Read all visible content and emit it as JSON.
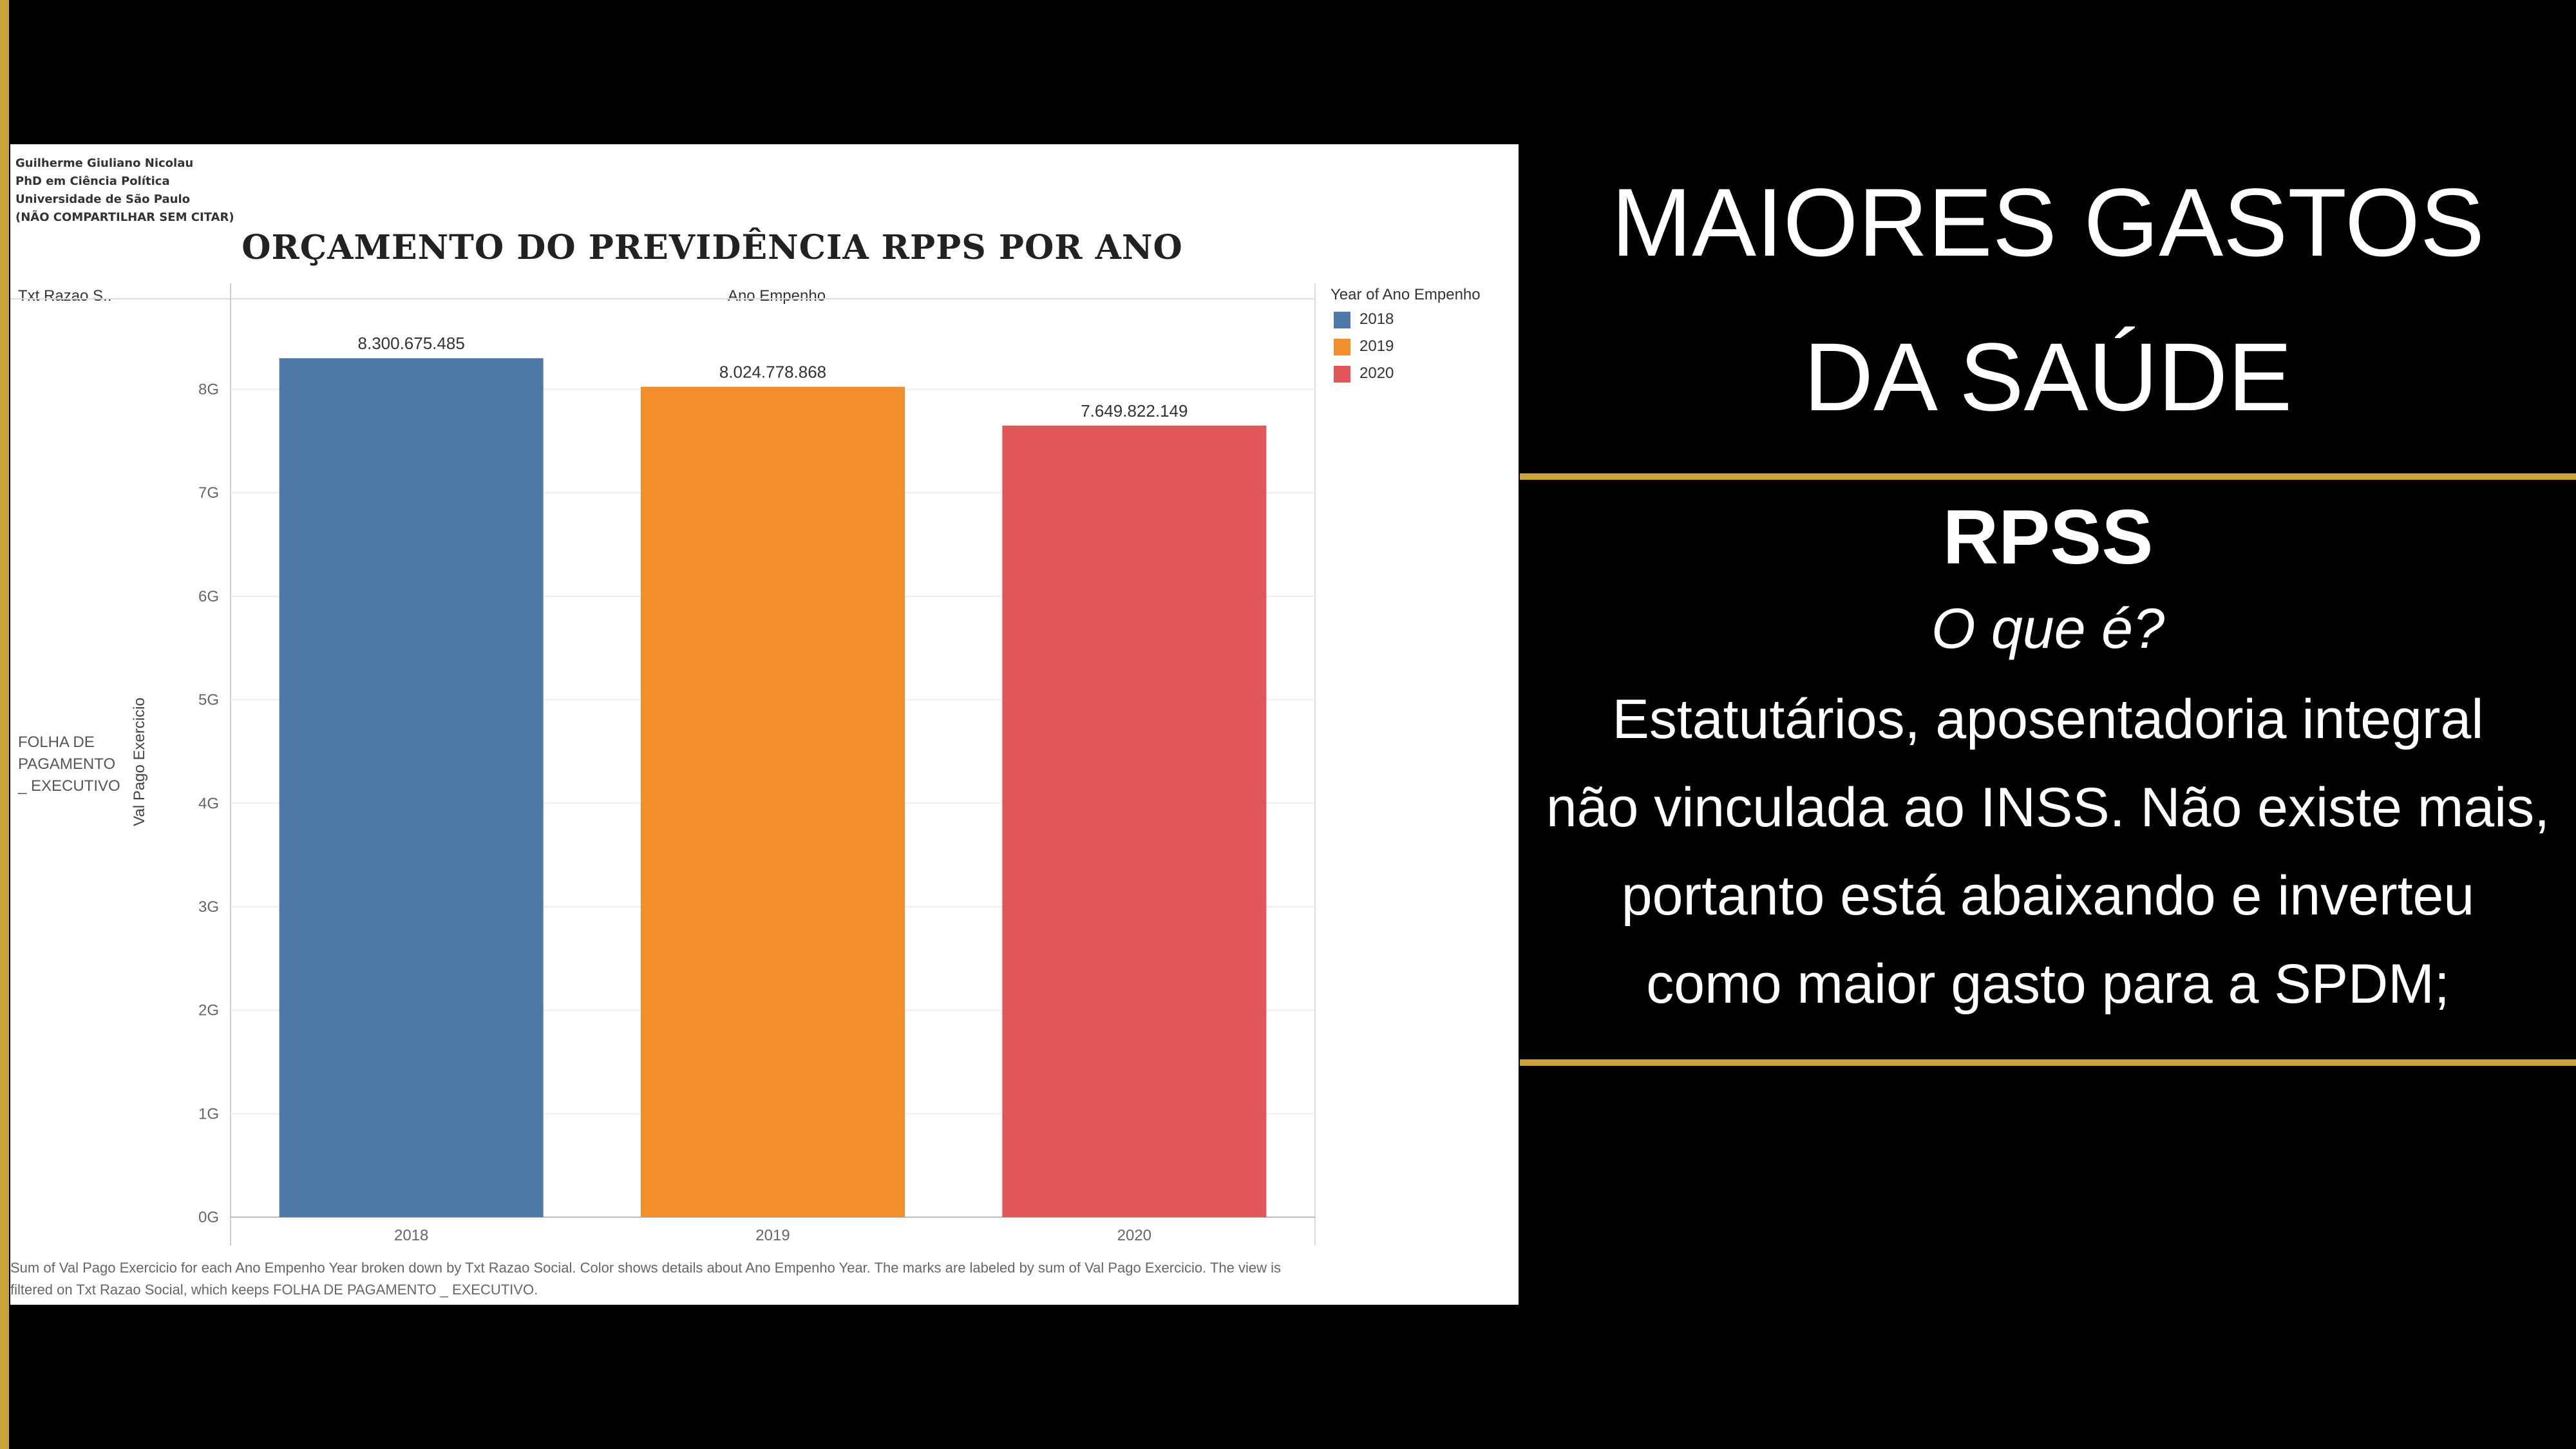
{
  "author_block": [
    "Guilherme Giuliano Nicolau",
    "PhD em Ciência Política",
    "Universidade de São Paulo",
    "(NÃO COMPARTILHAR SEM CITAR)"
  ],
  "column_header": "Txt Razao S..",
  "column_dim": "Ano Empenho",
  "row_label": "FOLHA DE PAGAMENTO _ EXECUTIVO",
  "footnote": "Sum of Val Pago Exercicio for each Ano Empenho Year broken down by Txt Razao Social.  Color shows details about Ano Empenho Year.  The marks are labeled by sum of Val Pago Exercicio. The view is filtered on Txt Razao Social, which keeps FOLHA DE PAGAMENTO _ EXECUTIVO.",
  "legend": {
    "title": "Year of Ano Empenho",
    "items": [
      {
        "label": "2018",
        "color": "#4e79a7"
      },
      {
        "label": "2019",
        "color": "#f28e2b"
      },
      {
        "label": "2020",
        "color": "#e15759"
      }
    ]
  },
  "chart_data": {
    "type": "bar",
    "title": "ORÇAMENTO DO PREVIDÊNCIA RPPS POR ANO",
    "xlabel": "Ano Empenho",
    "ylabel": "Val Pago Exercicio",
    "categories": [
      "2018",
      "2019",
      "2020"
    ],
    "values": [
      8300675485,
      8024778868,
      7649822149
    ],
    "data_labels": [
      "8.300.675.485",
      "8.024.778.868",
      "7.649.822.149"
    ],
    "colors": [
      "#4e79a7",
      "#f28e2b",
      "#e15759"
    ],
    "ylim": [
      0,
      8800000000
    ],
    "yticks": [
      0,
      1000000000,
      2000000000,
      3000000000,
      4000000000,
      5000000000,
      6000000000,
      7000000000,
      8000000000
    ],
    "ytick_labels": [
      "0G",
      "1G",
      "2G",
      "3G",
      "4G",
      "5G",
      "6G",
      "7G",
      "8G"
    ],
    "grid": true
  },
  "right_panel": {
    "title_lines": [
      "MAIORES GASTOS",
      "DA SAÚDE"
    ],
    "heading": "RPSS",
    "question": "O que é?",
    "description_lines": [
      "Estatutários, aposentadoria integral",
      "não vinculada ao INSS. Não existe mais,",
      "portanto está abaixando e inverteu",
      "como maior gasto para a SPDM;"
    ]
  },
  "colors": {
    "accent_gold": "#c9a43a",
    "background": "#000000"
  }
}
